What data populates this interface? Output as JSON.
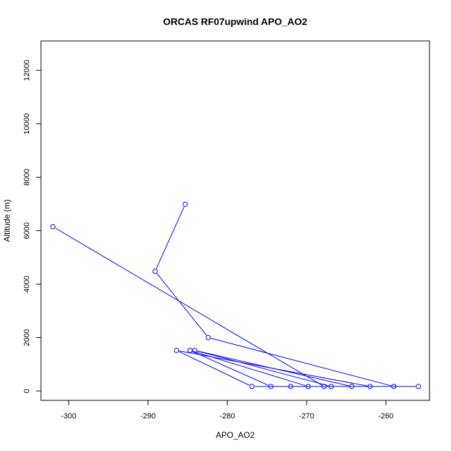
{
  "chart_data": {
    "type": "line",
    "title": "ORCAS RF07upwind APO_AO2",
    "xlabel": "APO_AO2",
    "ylabel": "Altitude (m)",
    "xlim": [
      -303.5,
      -254.5
    ],
    "ylim": [
      -350,
      13100
    ],
    "x_ticks": [
      -300,
      -290,
      -280,
      -270,
      -260
    ],
    "y_ticks": [
      0,
      2000,
      4000,
      6000,
      8000,
      10000,
      12000
    ],
    "grid": false,
    "series": [
      {
        "color": "#0000ff",
        "marker": "open-circle",
        "points": [
          {
            "x": -285.3,
            "y": 6990
          },
          {
            "x": -289.1,
            "y": 4480
          },
          {
            "x": -282.4,
            "y": 2000
          },
          {
            "x": -259.0,
            "y": 170
          },
          {
            "x": -255.9,
            "y": 170
          },
          {
            "x": -276.9,
            "y": 170
          },
          {
            "x": -286.4,
            "y": 1520
          },
          {
            "x": -262.0,
            "y": 170
          },
          {
            "x": -264.3,
            "y": 170
          },
          {
            "x": -284.1,
            "y": 1520
          },
          {
            "x": -266.9,
            "y": 170
          },
          {
            "x": -274.5,
            "y": 170
          },
          {
            "x": -284.7,
            "y": 1520
          },
          {
            "x": -269.8,
            "y": 170
          },
          {
            "x": -272.0,
            "y": 170
          },
          {
            "x": -267.8,
            "y": 170
          },
          {
            "x": -302.0,
            "y": 6150
          }
        ]
      }
    ]
  }
}
